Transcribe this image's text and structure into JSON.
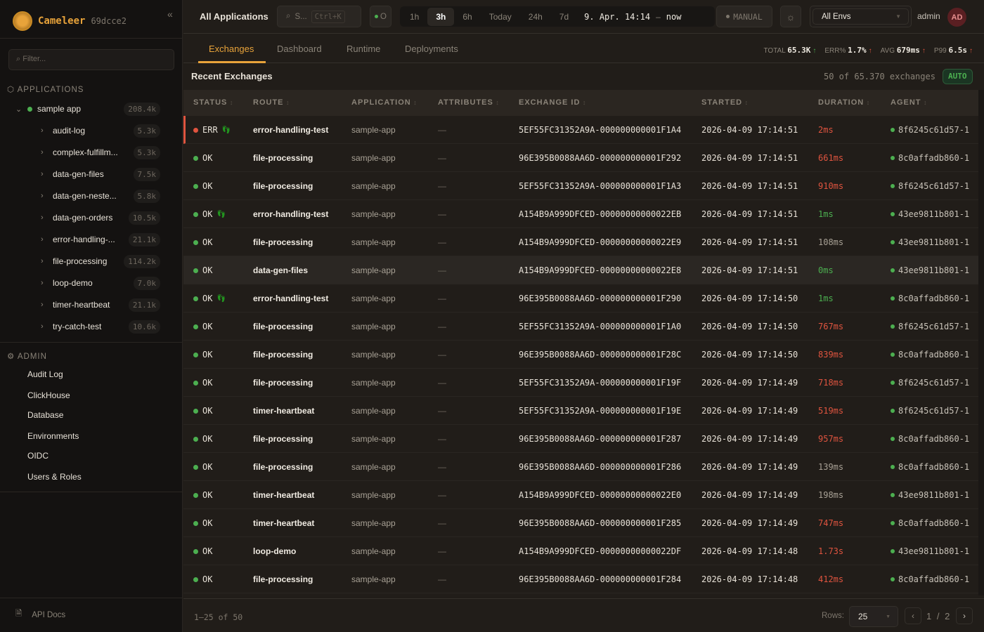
{
  "brand": {
    "name": "Cameleer",
    "version": "69dcce2",
    "collapse": "«"
  },
  "sidebar": {
    "filter_placeholder": "Filter...",
    "applications_label": "APPLICATIONS",
    "app": {
      "name": "sample app",
      "count": "208.4k",
      "status_color": "#4caf50"
    },
    "routes": [
      {
        "label": "audit-log",
        "count": "5.3k"
      },
      {
        "label": "complex-fulfillm...",
        "count": "5.3k"
      },
      {
        "label": "data-gen-files",
        "count": "7.5k"
      },
      {
        "label": "data-gen-neste...",
        "count": "5.8k"
      },
      {
        "label": "data-gen-orders",
        "count": "10.5k"
      },
      {
        "label": "error-handling-...",
        "count": "21.1k"
      },
      {
        "label": "file-processing",
        "count": "114.2k"
      },
      {
        "label": "loop-demo",
        "count": "7.0k"
      },
      {
        "label": "timer-heartbeat",
        "count": "21.1k"
      },
      {
        "label": "try-catch-test",
        "count": "10.6k"
      }
    ],
    "admin_label": "ADMIN",
    "admin_items": [
      "Audit Log",
      "ClickHouse",
      "Database",
      "Environments",
      "OIDC",
      "Users & Roles"
    ],
    "api_docs": "API Docs"
  },
  "topbar": {
    "title": "All Applications",
    "search": "S...",
    "search_shortcut": "Ctrl+K",
    "status_short": "O",
    "ranges": [
      "1h",
      "3h",
      "6h",
      "Today",
      "24h",
      "7d"
    ],
    "active_range": "3h",
    "range_from": "9. Apr. 14:14",
    "range_sep": "–",
    "range_to": "now",
    "manual": "MANUAL",
    "env": "All Envs",
    "user": "admin",
    "avatar": "AD"
  },
  "tabs": [
    "Exchanges",
    "Dashboard",
    "Runtime",
    "Deployments"
  ],
  "active_tab": "Exchanges",
  "kpis": [
    {
      "label": "TOTAL",
      "value": "65.3K",
      "trend": "up",
      "color": "#4caf50"
    },
    {
      "label": "ERR%",
      "value": "1.7%",
      "trend": "up",
      "color": "#e0543f"
    },
    {
      "label": "AVG",
      "value": "679ms",
      "trend": "up",
      "color": "#e0543f"
    },
    {
      "label": "P99",
      "value": "6.5s",
      "trend": "up",
      "color": "#e0543f"
    }
  ],
  "recent": {
    "title": "Recent Exchanges",
    "count_text": "50 of 65.370 exchanges",
    "auto": "AUTO"
  },
  "columns": [
    "STATUS",
    "ROUTE",
    "APPLICATION",
    "ATTRIBUTES",
    "EXCHANGE ID",
    "STARTED",
    "DURATION",
    "AGENT"
  ],
  "colors": {
    "ok": "#4caf50",
    "err": "#e0543f",
    "slow": "#e0543f",
    "fast": "#4caf50",
    "normal": "#a8a195",
    "accent": "#e8a33a"
  },
  "rows": [
    {
      "status": "ERR",
      "trace": true,
      "route": "error-handling-test",
      "app": "sample-app",
      "attr": "—",
      "id": "5EF55FC31352A9A-000000000001F1A4",
      "started": "2026-04-09 17:14:51",
      "duration": "2ms",
      "level": "slow",
      "agent": "8f6245c61d57-1"
    },
    {
      "status": "OK",
      "trace": false,
      "route": "file-processing",
      "app": "sample-app",
      "attr": "—",
      "id": "96E395B0088AA6D-000000000001F292",
      "started": "2026-04-09 17:14:51",
      "duration": "661ms",
      "level": "slow",
      "agent": "8c0affadb860-1"
    },
    {
      "status": "OK",
      "trace": false,
      "route": "file-processing",
      "app": "sample-app",
      "attr": "—",
      "id": "5EF55FC31352A9A-000000000001F1A3",
      "started": "2026-04-09 17:14:51",
      "duration": "910ms",
      "level": "slow",
      "agent": "8f6245c61d57-1"
    },
    {
      "status": "OK",
      "trace": true,
      "route": "error-handling-test",
      "app": "sample-app",
      "attr": "—",
      "id": "A154B9A999DFCED-00000000000022EB",
      "started": "2026-04-09 17:14:51",
      "duration": "1ms",
      "level": "fast",
      "agent": "43ee9811b801-1"
    },
    {
      "status": "OK",
      "trace": false,
      "route": "file-processing",
      "app": "sample-app",
      "attr": "—",
      "id": "A154B9A999DFCED-00000000000022E9",
      "started": "2026-04-09 17:14:51",
      "duration": "108ms",
      "level": "normal",
      "agent": "43ee9811b801-1"
    },
    {
      "status": "OK",
      "trace": false,
      "route": "data-gen-files",
      "app": "sample-app",
      "attr": "—",
      "id": "A154B9A999DFCED-00000000000022E8",
      "started": "2026-04-09 17:14:51",
      "duration": "0ms",
      "level": "fast",
      "agent": "43ee9811b801-1",
      "highlight": true
    },
    {
      "status": "OK",
      "trace": true,
      "route": "error-handling-test",
      "app": "sample-app",
      "attr": "—",
      "id": "96E395B0088AA6D-000000000001F290",
      "started": "2026-04-09 17:14:50",
      "duration": "1ms",
      "level": "fast",
      "agent": "8c0affadb860-1"
    },
    {
      "status": "OK",
      "trace": false,
      "route": "file-processing",
      "app": "sample-app",
      "attr": "—",
      "id": "5EF55FC31352A9A-000000000001F1A0",
      "started": "2026-04-09 17:14:50",
      "duration": "767ms",
      "level": "slow",
      "agent": "8f6245c61d57-1"
    },
    {
      "status": "OK",
      "trace": false,
      "route": "file-processing",
      "app": "sample-app",
      "attr": "—",
      "id": "96E395B0088AA6D-000000000001F28C",
      "started": "2026-04-09 17:14:50",
      "duration": "839ms",
      "level": "slow",
      "agent": "8c0affadb860-1"
    },
    {
      "status": "OK",
      "trace": false,
      "route": "file-processing",
      "app": "sample-app",
      "attr": "—",
      "id": "5EF55FC31352A9A-000000000001F19F",
      "started": "2026-04-09 17:14:49",
      "duration": "718ms",
      "level": "slow",
      "agent": "8f6245c61d57-1"
    },
    {
      "status": "OK",
      "trace": false,
      "route": "timer-heartbeat",
      "app": "sample-app",
      "attr": "—",
      "id": "5EF55FC31352A9A-000000000001F19E",
      "started": "2026-04-09 17:14:49",
      "duration": "519ms",
      "level": "slow",
      "agent": "8f6245c61d57-1"
    },
    {
      "status": "OK",
      "trace": false,
      "route": "file-processing",
      "app": "sample-app",
      "attr": "—",
      "id": "96E395B0088AA6D-000000000001F287",
      "started": "2026-04-09 17:14:49",
      "duration": "957ms",
      "level": "slow",
      "agent": "8c0affadb860-1"
    },
    {
      "status": "OK",
      "trace": false,
      "route": "file-processing",
      "app": "sample-app",
      "attr": "—",
      "id": "96E395B0088AA6D-000000000001F286",
      "started": "2026-04-09 17:14:49",
      "duration": "139ms",
      "level": "normal",
      "agent": "8c0affadb860-1"
    },
    {
      "status": "OK",
      "trace": false,
      "route": "timer-heartbeat",
      "app": "sample-app",
      "attr": "—",
      "id": "A154B9A999DFCED-00000000000022E0",
      "started": "2026-04-09 17:14:49",
      "duration": "198ms",
      "level": "normal",
      "agent": "43ee9811b801-1"
    },
    {
      "status": "OK",
      "trace": false,
      "route": "timer-heartbeat",
      "app": "sample-app",
      "attr": "—",
      "id": "96E395B0088AA6D-000000000001F285",
      "started": "2026-04-09 17:14:49",
      "duration": "747ms",
      "level": "slow",
      "agent": "8c0affadb860-1"
    },
    {
      "status": "OK",
      "trace": false,
      "route": "loop-demo",
      "app": "sample-app",
      "attr": "—",
      "id": "A154B9A999DFCED-00000000000022DF",
      "started": "2026-04-09 17:14:48",
      "duration": "1.73s",
      "level": "slow",
      "agent": "43ee9811b801-1"
    },
    {
      "status": "OK",
      "trace": false,
      "route": "file-processing",
      "app": "sample-app",
      "attr": "—",
      "id": "96E395B0088AA6D-000000000001F284",
      "started": "2026-04-09 17:14:48",
      "duration": "412ms",
      "level": "slow",
      "agent": "8c0affadb860-1"
    }
  ],
  "footer": {
    "range": "1–25 of 50",
    "rows_label": "Rows:",
    "rows_value": "25",
    "page": "1",
    "page_sep": "/",
    "pages": "2",
    "prev": "‹",
    "next": "›"
  }
}
